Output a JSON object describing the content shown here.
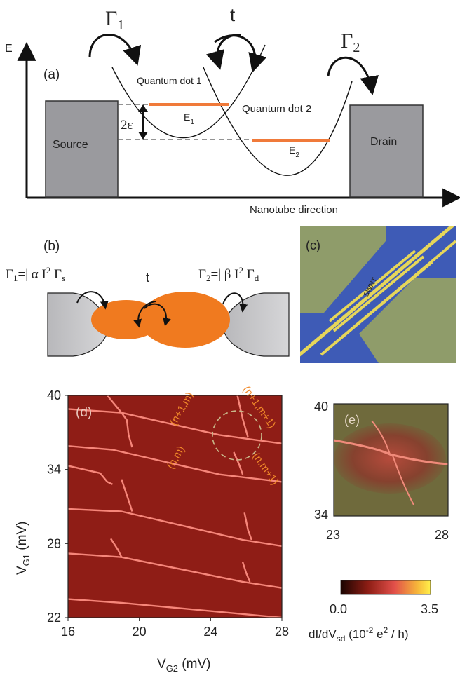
{
  "panel_a": {
    "label": "(a)",
    "axis_y": "E",
    "axis_x": "Nanotube direction",
    "source": "Source",
    "drain": "Drain",
    "qd1": "Quantum dot 1",
    "qd2": "Quantum dot 2",
    "gamma1": {
      "sym": "Γ",
      "sub": "1"
    },
    "gamma2": {
      "sym": "Γ",
      "sub": "2"
    },
    "t": "t",
    "eps": "2ε",
    "e1": {
      "sym": "E",
      "sub": "1"
    },
    "e2": {
      "sym": "E",
      "sub": "2"
    },
    "colors": {
      "box": "#9a9a9e",
      "level": "#f07a3a"
    }
  },
  "panel_b": {
    "label": "(b)",
    "gamma1": {
      "lhs": "Γ",
      "lhs_sub": "1",
      "mid": "=| α I",
      "sup": "2",
      "rhs": " Γ",
      "rhs_sub": "s"
    },
    "gamma2": {
      "lhs": "Γ",
      "lhs_sub": "2",
      "mid": "=| β I",
      "sup": "2",
      "rhs": " Γ",
      "rhs_sub": "d"
    },
    "t": "t",
    "colors": {
      "dot": "#f07a1f",
      "lead": "#c9c9cc"
    }
  },
  "panel_c": {
    "label": "(c)",
    "swnt": "SWNT",
    "colors": {
      "substrate": "#3e5bb6",
      "pad": "#8f9c6a",
      "line": "#e6d659"
    }
  },
  "panel_d": {
    "label": "(d)",
    "xlabel": {
      "main": "V",
      "sub": "G2",
      "unit": " (mV)"
    },
    "ylabel": {
      "main": "V",
      "sub": "G1",
      "unit": " (mV)"
    },
    "xticks": [
      "16",
      "20",
      "24",
      "28"
    ],
    "yticks": [
      "22",
      "28",
      "34",
      "40"
    ],
    "annotations": [
      "(n+1,m)",
      "(n+1,m+1)",
      "(n,m)",
      "(n,m+1)"
    ],
    "colors": {
      "bg": "#8f1d16",
      "line": "#f6867a"
    }
  },
  "panel_e": {
    "label": "(e)",
    "xticks": [
      "23",
      "28"
    ],
    "yticks": [
      "34",
      "40"
    ]
  },
  "colorbar": {
    "min": "0.0",
    "max": "3.5",
    "label": {
      "pre": "dI/dV",
      "sub": "sd",
      "mid": " (10",
      "sup": "-2",
      "post": " e",
      "sup2": "2",
      "end": " / h)"
    }
  },
  "chart_data": {
    "type": "heatmap",
    "title": "",
    "xlabel": "VG2 (mV)",
    "ylabel": "VG1 (mV)",
    "xlim": [
      16,
      28
    ],
    "ylim": [
      22,
      40
    ],
    "xticks": [
      16,
      20,
      24,
      28
    ],
    "yticks": [
      22,
      28,
      34,
      40
    ],
    "colorbar_range": [
      0.0,
      3.5
    ],
    "colorbar_label": "dI/dVsd (10^-2 e^2 / h)",
    "series": [
      {
        "values": [
          [
            16,
            38.9
          ],
          [
            19,
            38.6
          ],
          [
            24.5,
            36.8
          ],
          [
            28,
            36.1
          ]
        ]
      },
      {
        "values": [
          [
            16,
            35.9
          ],
          [
            18.5,
            35.6
          ],
          [
            24.5,
            33.6
          ],
          [
            28,
            33.0
          ]
        ]
      },
      {
        "values": [
          [
            16,
            30.8
          ],
          [
            19,
            30.6
          ],
          [
            25.8,
            28.3
          ],
          [
            28,
            27.8
          ]
        ]
      },
      {
        "values": [
          [
            16,
            27.2
          ],
          [
            19,
            26.9
          ],
          [
            25.8,
            24.9
          ],
          [
            28,
            24.4
          ]
        ]
      },
      {
        "values": [
          [
            16,
            23.5
          ],
          [
            19,
            23.2
          ],
          [
            28,
            22.0
          ]
        ]
      },
      {
        "values": [
          [
            16,
            34.3
          ],
          [
            17.8,
            33.7
          ],
          [
            18.2,
            33.0
          ],
          [
            18.5,
            32.8
          ]
        ]
      },
      {
        "values": [
          [
            18.2,
            40.0
          ],
          [
            19.0,
            38.6
          ],
          [
            19.3,
            38.0
          ],
          [
            19.4,
            36.8
          ],
          [
            19.6,
            35.8
          ]
        ]
      },
      {
        "values": [
          [
            19.0,
            33.2
          ],
          [
            19.4,
            31.5
          ],
          [
            19.6,
            30.6
          ]
        ]
      },
      {
        "values": [
          [
            18.4,
            28.4
          ],
          [
            18.8,
            27.5
          ],
          [
            19.0,
            26.9
          ]
        ]
      },
      {
        "values": [
          [
            25.5,
            40.0
          ],
          [
            25.8,
            38.1
          ],
          [
            26.1,
            36.6
          ]
        ]
      },
      {
        "values": [
          [
            25.3,
            35.4
          ],
          [
            25.6,
            34.4
          ],
          [
            25.8,
            33.6
          ]
        ]
      },
      {
        "values": [
          [
            25.9,
            30.5
          ],
          [
            26.1,
            29.1
          ],
          [
            26.3,
            28.3
          ]
        ]
      },
      {
        "values": [
          [
            25.8,
            26.5
          ],
          [
            26.0,
            25.6
          ],
          [
            26.2,
            24.9
          ]
        ]
      }
    ]
  }
}
